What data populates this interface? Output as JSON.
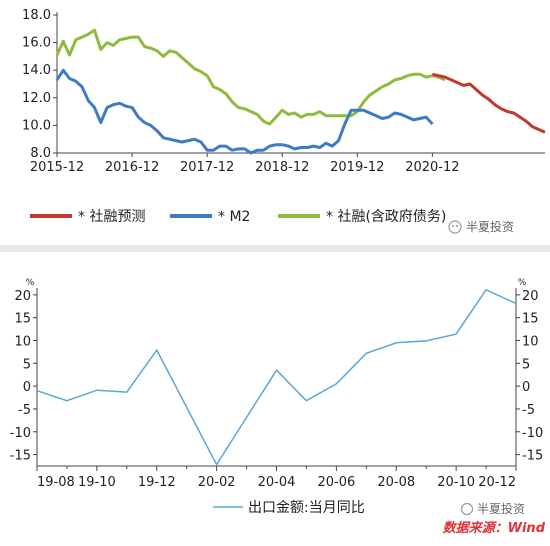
{
  "chart_data": [
    {
      "type": "line",
      "x_ticks": [
        "2015-12",
        "2016-12",
        "2017-12",
        "2018-12",
        "2019-12",
        "2020-12"
      ],
      "y_ticks": [
        "8.0",
        "10.0",
        "12.0",
        "14.0",
        "16.0",
        "18.0"
      ],
      "ylim": [
        8,
        18
      ],
      "xlim": [
        0,
        78
      ],
      "grid": false,
      "legend_position": "bottom",
      "series": [
        {
          "name": "* 社融预测",
          "color": "#c0392b",
          "x": [
            60,
            61,
            62,
            63,
            64,
            65,
            66,
            67,
            68,
            69,
            70,
            71,
            72,
            73,
            74,
            75,
            76,
            77,
            78
          ],
          "values": [
            13.7,
            13.6,
            13.5,
            13.3,
            13.1,
            12.9,
            13.0,
            12.6,
            12.2,
            11.9,
            11.5,
            11.2,
            11.0,
            10.9,
            10.6,
            10.3,
            9.9,
            9.7,
            9.5
          ]
        },
        {
          "name": "* M2",
          "color": "#3d7cc4",
          "x": [
            0,
            1,
            2,
            3,
            4,
            5,
            6,
            7,
            8,
            9,
            10,
            11,
            12,
            13,
            14,
            15,
            16,
            17,
            18,
            19,
            20,
            21,
            22,
            23,
            24,
            25,
            26,
            27,
            28,
            29,
            30,
            31,
            32,
            33,
            34,
            35,
            36,
            37,
            38,
            39,
            40,
            41,
            42,
            43,
            44,
            45,
            46,
            47,
            48,
            49,
            50,
            51,
            52,
            53,
            54,
            55,
            56,
            57,
            58,
            59,
            60
          ],
          "values": [
            13.3,
            14.0,
            13.4,
            13.2,
            12.8,
            11.8,
            11.3,
            10.2,
            11.3,
            11.5,
            11.6,
            11.4,
            11.3,
            10.6,
            10.2,
            10.0,
            9.6,
            9.1,
            9.0,
            8.9,
            8.8,
            8.9,
            9.0,
            8.8,
            8.2,
            8.2,
            8.5,
            8.5,
            8.2,
            8.3,
            8.3,
            8.0,
            8.2,
            8.2,
            8.5,
            8.6,
            8.6,
            8.5,
            8.3,
            8.4,
            8.4,
            8.5,
            8.4,
            8.7,
            8.5,
            8.9,
            10.1,
            11.1,
            11.1,
            11.1,
            10.9,
            10.7,
            10.5,
            10.6,
            10.9,
            10.8,
            10.6,
            10.4,
            10.5,
            10.6,
            10.1
          ]
        },
        {
          "name": "* 社融(含政府债务)",
          "color": "#8dbc3c",
          "x": [
            0,
            1,
            2,
            3,
            4,
            5,
            6,
            7,
            8,
            9,
            10,
            11,
            12,
            13,
            14,
            15,
            16,
            17,
            18,
            19,
            20,
            21,
            22,
            23,
            24,
            25,
            26,
            27,
            28,
            29,
            30,
            31,
            32,
            33,
            34,
            35,
            36,
            37,
            38,
            39,
            40,
            41,
            42,
            43,
            44,
            45,
            46,
            47,
            48,
            49,
            50,
            51,
            52,
            53,
            54,
            55,
            56,
            57,
            58,
            59,
            60,
            61,
            62
          ],
          "values": [
            15.1,
            16.1,
            15.1,
            16.2,
            16.4,
            16.6,
            16.9,
            15.5,
            16.0,
            15.8,
            16.2,
            16.3,
            16.4,
            16.4,
            15.7,
            15.6,
            15.4,
            15.0,
            15.4,
            15.3,
            14.9,
            14.5,
            14.1,
            13.9,
            13.6,
            12.8,
            12.6,
            12.3,
            11.7,
            11.3,
            11.2,
            11.0,
            10.8,
            10.3,
            10.1,
            10.6,
            11.1,
            10.8,
            10.9,
            10.6,
            10.8,
            10.8,
            11.0,
            10.7,
            10.7,
            10.7,
            10.7,
            10.7,
            11.0,
            11.7,
            12.2,
            12.5,
            12.8,
            13.0,
            13.3,
            13.4,
            13.6,
            13.7,
            13.7,
            13.5,
            13.6,
            13.5,
            13.3
          ]
        }
      ]
    },
    {
      "type": "line",
      "categories": [
        "19-08",
        "19-09",
        "19-10",
        "19-11",
        "19-12",
        "20-01",
        "20-02",
        "20-03",
        "20-04",
        "20-05",
        "20-06",
        "20-07",
        "20-08",
        "20-09",
        "20-10",
        "20-11",
        "20-12"
      ],
      "x_tick_labels": [
        "19-08",
        "19-10",
        "19-12",
        "20-02",
        "20-04",
        "20-06",
        "20-08",
        "20-10",
        "20-12"
      ],
      "y_ticks": [
        "-15",
        "-10",
        "-5",
        "0",
        "5",
        "10",
        "15",
        "20"
      ],
      "ylim": [
        -17.5,
        21.5
      ],
      "y_unit": "%",
      "grid": false,
      "legend_position": "bottom",
      "series": [
        {
          "name": "出口金额:当月同比",
          "color": "#5aa8d8",
          "values": [
            -1.0,
            -3.2,
            -0.9,
            -1.3,
            7.9,
            null,
            -17.2,
            null,
            3.5,
            -3.2,
            0.5,
            7.2,
            9.5,
            9.9,
            11.4,
            21.1,
            18.1
          ]
        }
      ]
    }
  ],
  "watermark": {
    "top": "半夏投资",
    "bottom": "半夏投资"
  },
  "source": "数据来源：Wind"
}
